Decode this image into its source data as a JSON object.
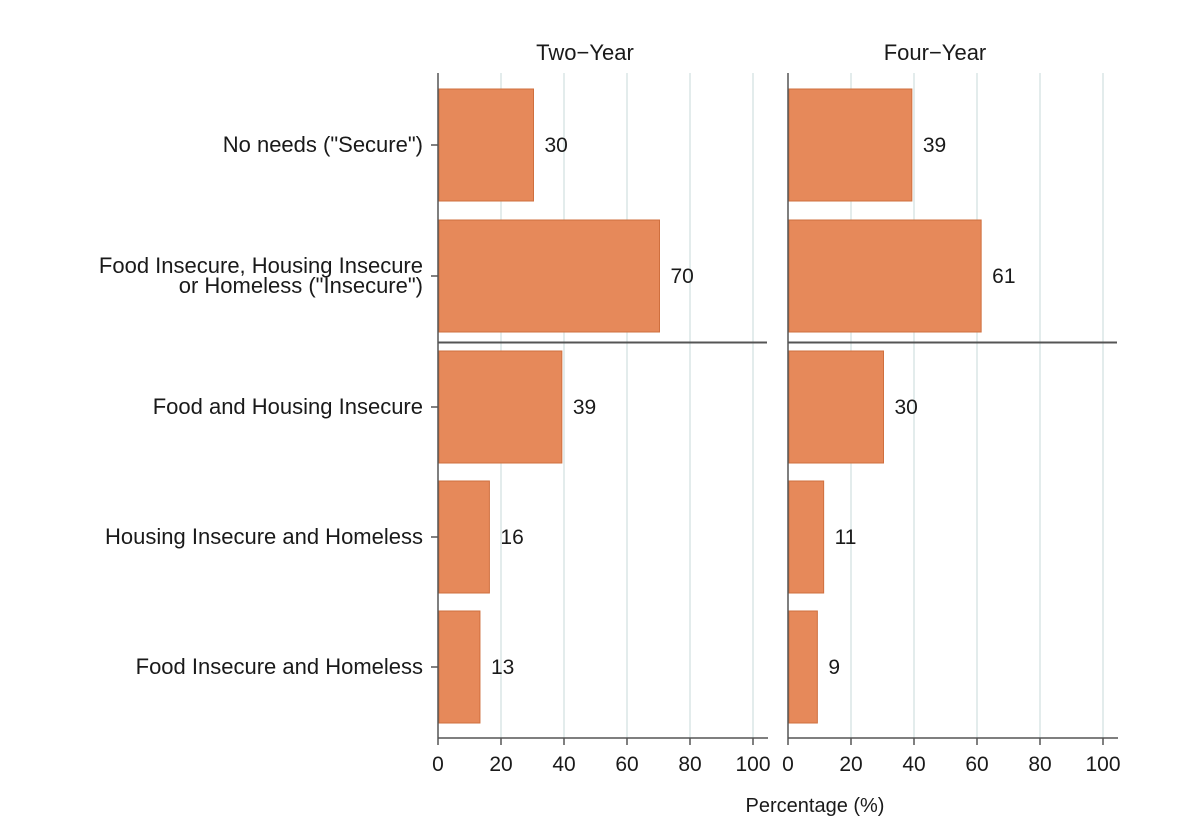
{
  "chart_data": {
    "type": "bar",
    "orientation": "horizontal",
    "xlabel": "Percentage (%)",
    "xlim": [
      0,
      100
    ],
    "xticks": [
      0,
      20,
      40,
      60,
      80,
      100
    ],
    "grid": true,
    "bar_color": "#e6895a",
    "grid_color": "#e3ecec",
    "categories": [
      [
        "No needs (\"Secure\")"
      ],
      [
        "Food Insecure, Housing Insecure",
        "or Homeless (\"Insecure\")"
      ],
      [
        "Food and Housing Insecure"
      ],
      [
        "Housing Insecure and Homeless"
      ],
      [
        "Food Insecure and Homeless"
      ]
    ],
    "separator_after_index": 1,
    "panels": [
      {
        "title": "Two−Year",
        "values": [
          30,
          70,
          39,
          16,
          13
        ]
      },
      {
        "title": "Four−Year",
        "values": [
          39,
          61,
          30,
          11,
          9
        ]
      }
    ]
  }
}
